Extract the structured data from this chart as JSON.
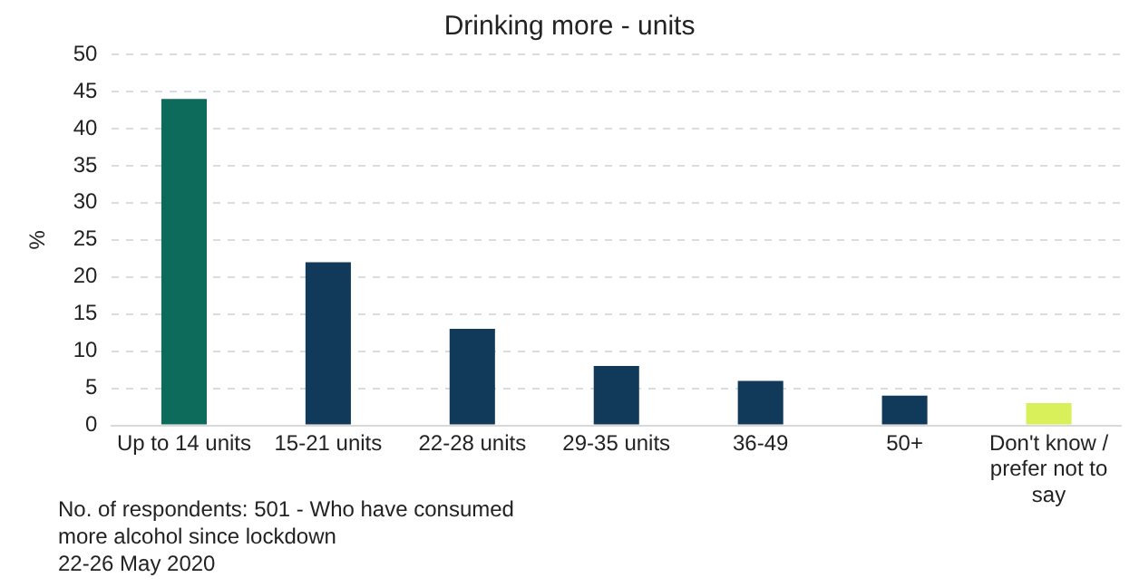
{
  "chart_data": {
    "type": "bar",
    "title": "Drinking more - units",
    "ylabel": "%",
    "categories": [
      "Up to 14 units",
      "15-21 units",
      "22-28 units",
      "29-35 units",
      "36-49",
      "50+",
      "Don't know / prefer not to say"
    ],
    "values": [
      44,
      22,
      13,
      8,
      6,
      4,
      3
    ],
    "colors": [
      "#0d6b5c",
      "#11395a",
      "#11395a",
      "#11395a",
      "#11395a",
      "#11395a",
      "#d9f05a"
    ],
    "ylim": [
      0,
      50
    ],
    "yticks": [
      0,
      5,
      10,
      15,
      20,
      25,
      30,
      35,
      40,
      45,
      50
    ],
    "grid": "y",
    "annotations": [
      "No. of respondents: 501 - Who have consumed more alcohol since lockdown",
      "22-26 May 2020"
    ]
  }
}
